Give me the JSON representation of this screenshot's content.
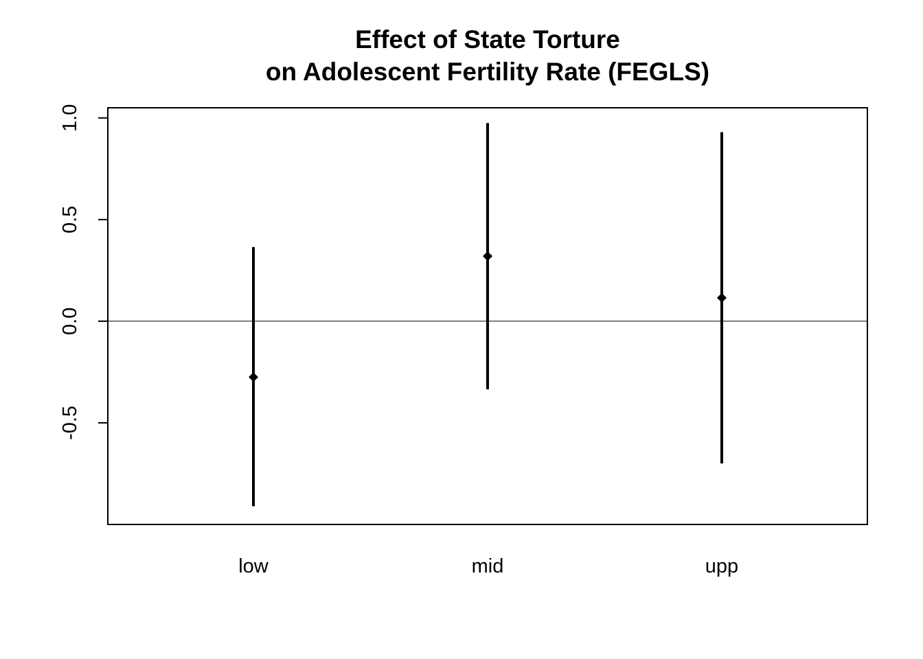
{
  "chart_data": {
    "type": "errorbar",
    "title_lines": [
      "Effect of State Torture",
      "on Adolescent Fertility Rate (FEGLS)"
    ],
    "xlabel": "",
    "ylabel": "",
    "categories": [
      "low",
      "mid",
      "upp"
    ],
    "estimates": [
      -0.275,
      0.32,
      0.115
    ],
    "lower": [
      -0.91,
      -0.335,
      -0.7
    ],
    "upper": [
      0.365,
      0.975,
      0.93
    ],
    "ylim": [
      -1.0,
      1.05
    ],
    "y_ticks": [
      -0.5,
      0.0,
      0.5,
      1.0
    ],
    "y_tick_labels": [
      "-0.5",
      "0.0",
      "0.5",
      "1.0"
    ],
    "reference_line_y": 0.0,
    "grid": false,
    "colors": {
      "bars": "#000000",
      "points": "#000000",
      "frame": "#000000",
      "reference_line": "#000000"
    }
  }
}
